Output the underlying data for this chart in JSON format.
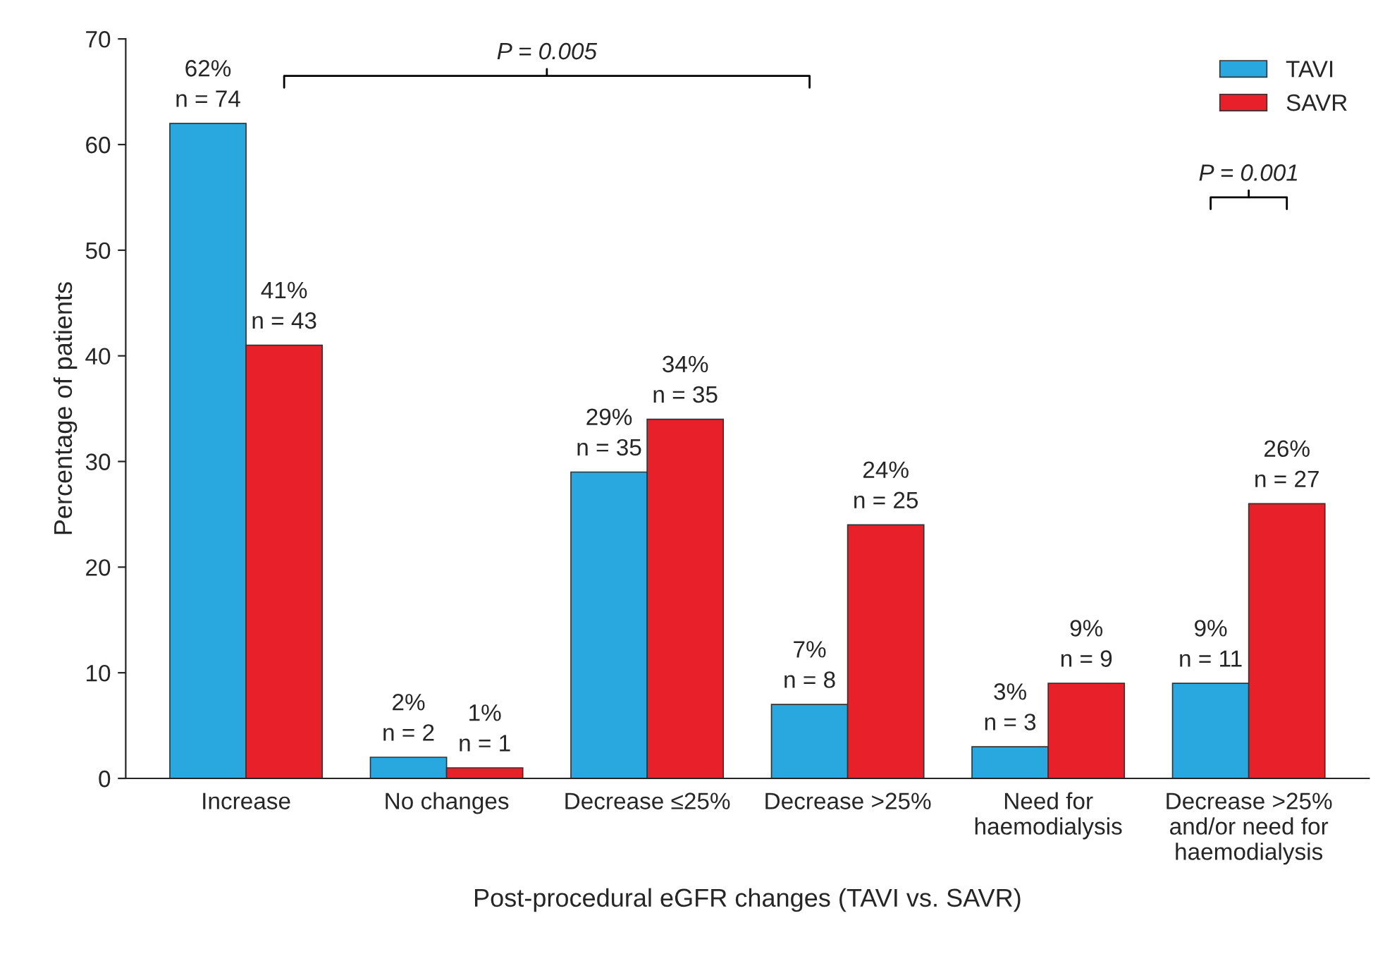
{
  "chart_data": {
    "type": "bar",
    "xlabel": "Post-procedural eGFR changes (TAVI vs. SAVR)",
    "ylabel": "Percentage of patients",
    "categories": [
      "Increase",
      "No changes",
      "Decrease ≤25%",
      "Decrease >25%",
      "Need for\nhaemodialysis",
      "Decrease >25%\nand/or need for\nhaemodialysis"
    ],
    "series": [
      {
        "name": "TAVI",
        "color": "#29a8e0",
        "values": [
          62,
          2,
          29,
          7,
          3,
          9
        ],
        "value_labels": [
          "62%\nn = 74",
          "2%\nn = 2",
          "29%\nn = 35",
          "7%\nn = 8",
          "3%\nn = 3",
          "9%\nn = 11"
        ]
      },
      {
        "name": "SAVR",
        "color": "#e8202a",
        "values": [
          41,
          1,
          34,
          24,
          9,
          26
        ],
        "value_labels": [
          "41%\nn = 43",
          "1%\nn = 1",
          "34%\nn = 35",
          "24%\nn = 25",
          "9%\nn = 9",
          "26%\nn = 27"
        ]
      }
    ],
    "annotations": [
      "P = 0.005",
      "P = 0.001"
    ],
    "ylim": [
      0,
      70
    ],
    "yticks": [
      0,
      10,
      20,
      30,
      40,
      50,
      60,
      70
    ],
    "grid": false,
    "legend": "top right"
  }
}
